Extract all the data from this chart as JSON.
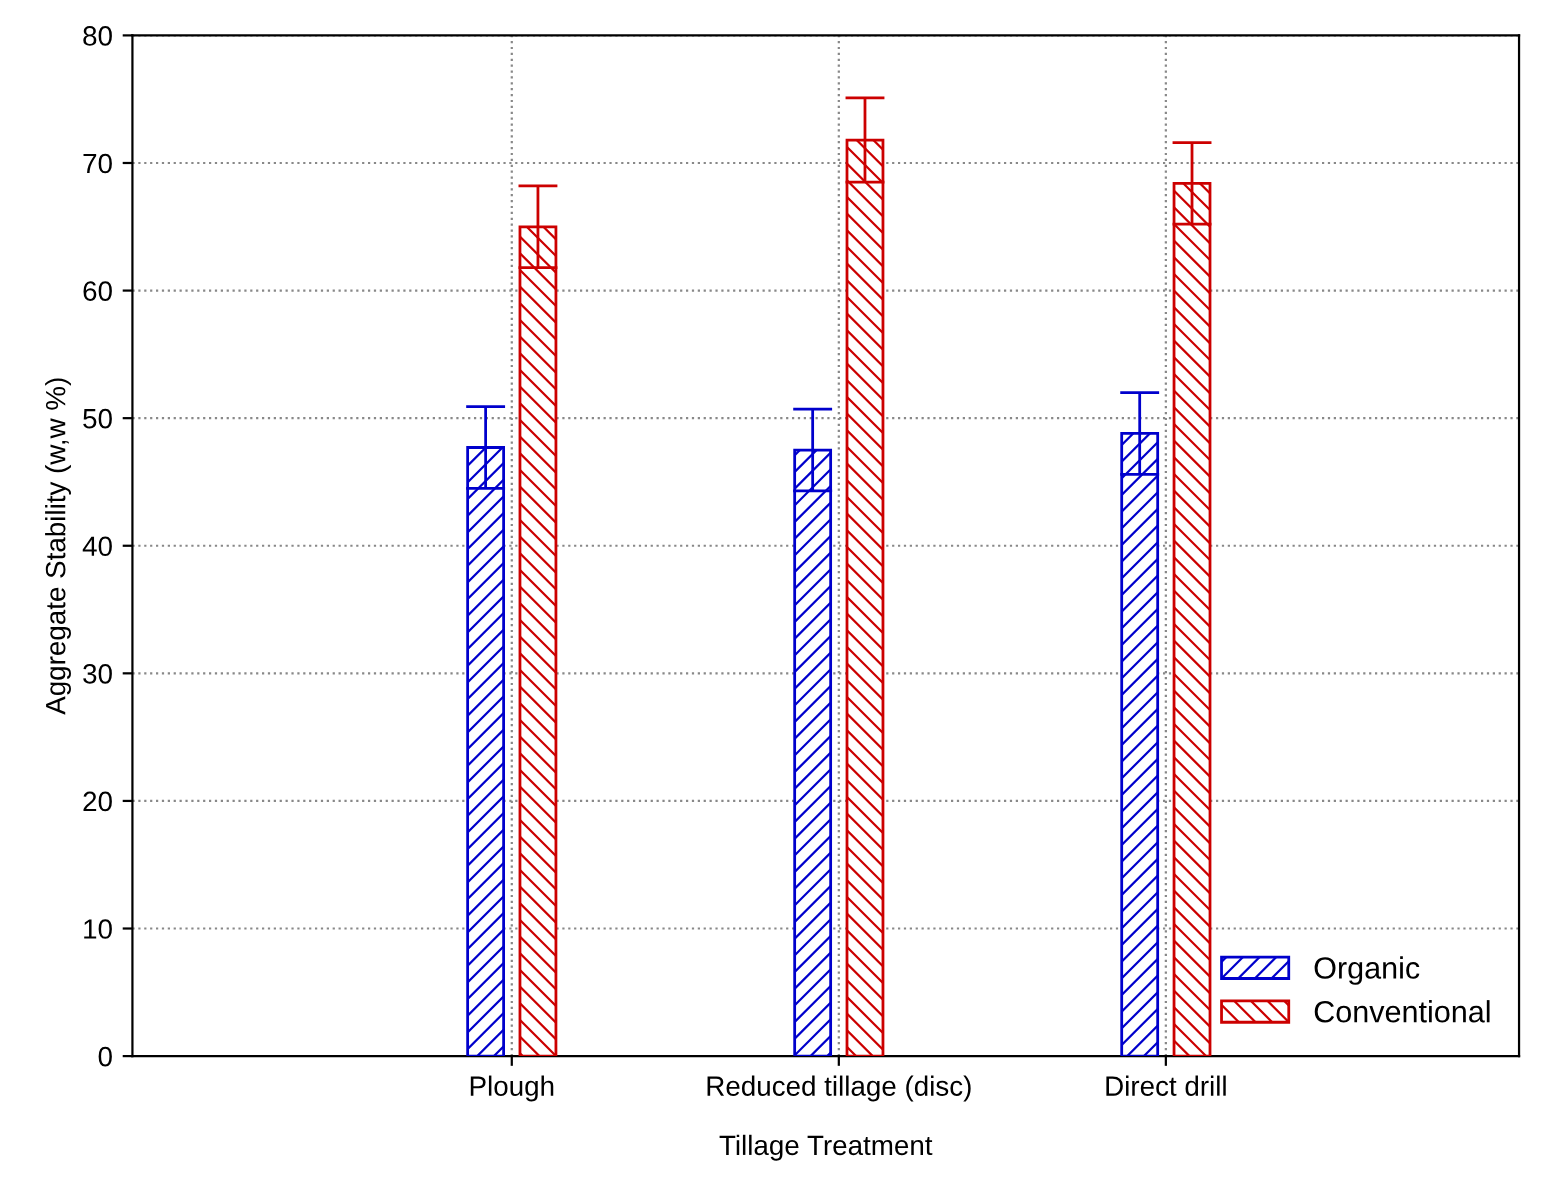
{
  "chart_data": {
    "type": "bar",
    "xlabel": "Tillage Treatment",
    "ylabel": "Aggregate Stability (w,w %)",
    "categories": [
      "Plough",
      "Reduced tillage (disc)",
      "Direct drill"
    ],
    "series": [
      {
        "name": "Organic",
        "color": "#0000cc",
        "values": [
          47.7,
          47.5,
          48.8
        ],
        "errors": [
          3.2,
          3.2,
          3.2
        ]
      },
      {
        "name": "Conventional",
        "color": "#cc0000",
        "values": [
          65.0,
          71.8,
          68.4
        ],
        "errors": [
          3.2,
          3.3,
          3.2
        ]
      }
    ],
    "ylim": [
      0,
      80
    ],
    "yticks": [
      0,
      10,
      20,
      30,
      40,
      50,
      60,
      70,
      80
    ],
    "grid": true,
    "legend": "bottom right"
  }
}
